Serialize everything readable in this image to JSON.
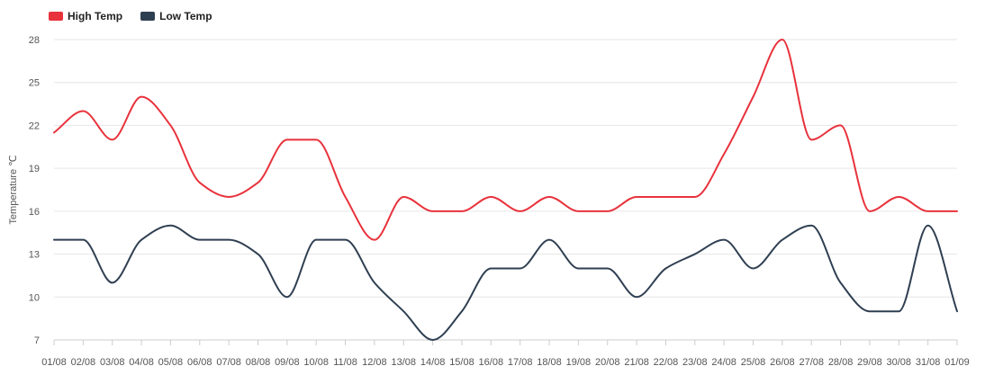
{
  "chart_data": {
    "type": "line",
    "title": "",
    "xlabel": "",
    "ylabel": "Temperature ℃",
    "ylim": [
      7,
      28
    ],
    "yticks": [
      7,
      10,
      13,
      16,
      19,
      22,
      25,
      28
    ],
    "grid": true,
    "legend_position": "top-left",
    "categories": [
      "01/08",
      "02/08",
      "03/08",
      "04/08",
      "05/08",
      "06/08",
      "07/08",
      "08/08",
      "09/08",
      "10/08",
      "11/08",
      "12/08",
      "13/08",
      "14/08",
      "15/08",
      "16/08",
      "17/08",
      "18/08",
      "19/08",
      "20/08",
      "21/08",
      "22/08",
      "23/08",
      "24/08",
      "25/08",
      "26/08",
      "27/08",
      "28/08",
      "29/08",
      "30/08",
      "31/08",
      "01/09"
    ],
    "series": [
      {
        "name": "High Temp",
        "color": "#e8323c",
        "values": [
          21.5,
          23,
          21,
          24,
          22,
          18,
          17,
          18,
          21,
          21,
          17,
          14,
          17,
          16,
          16,
          17,
          16,
          17,
          16,
          16,
          17,
          17,
          17,
          20,
          24,
          28,
          21,
          22,
          16,
          17,
          16,
          16
        ]
      },
      {
        "name": "Low Temp",
        "color": "#2f3f52",
        "values": [
          14,
          14,
          11,
          14,
          15,
          14,
          14,
          13,
          10,
          14,
          14,
          11,
          9,
          7,
          9,
          12,
          12,
          14,
          12,
          12,
          10,
          12,
          13,
          14,
          12,
          14,
          15,
          11,
          9,
          9,
          15,
          9
        ]
      }
    ]
  }
}
